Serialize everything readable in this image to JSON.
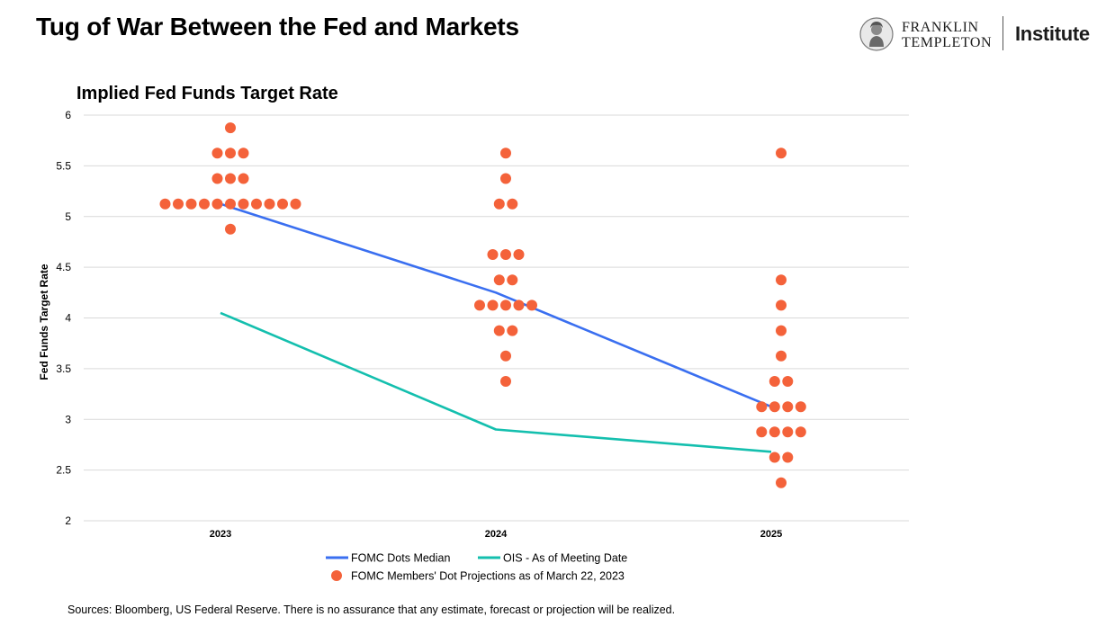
{
  "page": {
    "title": "Tug of War Between the Fed and Markets",
    "sources": "Sources: Bloomberg, US Federal Reserve. There is no assurance that any estimate, forecast or projection will be realized."
  },
  "logo": {
    "line1": "FRANKLIN",
    "line2": "TEMPLETON",
    "institute": "Institute"
  },
  "chart_data": {
    "type": "line",
    "title": "Implied Fed Funds Target Rate",
    "xlabel": "",
    "ylabel": "Fed Funds Target Rate",
    "categories": [
      "2023",
      "2024",
      "2025"
    ],
    "ylim": [
      2,
      6
    ],
    "yticks": [
      "2",
      "2.5",
      "3",
      "3.5",
      "4",
      "4.5",
      "5",
      "5.5",
      "6"
    ],
    "grid": true,
    "legend_position": "bottom",
    "series": [
      {
        "name": "FOMC Dots Median",
        "type": "line",
        "color": "#3a6ff0",
        "values": [
          5.125,
          4.25,
          3.125
        ]
      },
      {
        "name": "OIS - As of Meeting Date",
        "type": "line",
        "color": "#14bfae",
        "values": [
          4.05,
          2.9,
          2.68
        ]
      }
    ],
    "dots": {
      "name": "FOMC Members' Dot Projections as of March 22, 2023",
      "color": "#f4623a",
      "groups": [
        {
          "category": "2023",
          "points": [
            5.875,
            5.625,
            5.625,
            5.625,
            5.375,
            5.375,
            5.375,
            5.125,
            5.125,
            5.125,
            5.125,
            5.125,
            5.125,
            5.125,
            5.125,
            5.125,
            5.125,
            5.125,
            4.875
          ]
        },
        {
          "category": "2024",
          "points": [
            5.625,
            5.375,
            5.125,
            5.125,
            4.625,
            4.625,
            4.625,
            4.375,
            4.375,
            4.125,
            4.125,
            4.125,
            4.125,
            4.125,
            3.875,
            3.875,
            3.625,
            3.375
          ]
        },
        {
          "category": "2025",
          "points": [
            5.625,
            4.375,
            4.125,
            3.875,
            3.625,
            3.375,
            3.375,
            3.125,
            3.125,
            3.125,
            3.125,
            2.875,
            2.875,
            2.875,
            2.875,
            2.625,
            2.625,
            2.375
          ]
        }
      ]
    }
  }
}
